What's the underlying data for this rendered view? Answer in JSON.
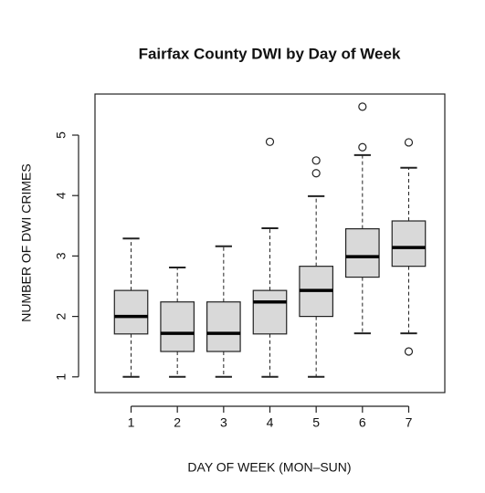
{
  "chart_data": {
    "type": "box",
    "title": "Fairfax County DWI by Day of Week",
    "x_label": "DAY OF WEEK (MON–SUN)",
    "y_label": "NUMBER OF DWI CRIMES",
    "categories": [
      "1",
      "2",
      "3",
      "4",
      "5",
      "6",
      "7"
    ],
    "boxes": [
      {
        "min": 1,
        "q1": 1.71,
        "median": 2.0,
        "q3": 2.43,
        "max": 3.29,
        "outliers": []
      },
      {
        "min": 1,
        "q1": 1.42,
        "median": 1.72,
        "q3": 2.24,
        "max": 2.81,
        "outliers": []
      },
      {
        "min": 1,
        "q1": 1.42,
        "median": 1.72,
        "q3": 2.24,
        "max": 3.16,
        "outliers": []
      },
      {
        "min": 1,
        "q1": 1.71,
        "median": 2.24,
        "q3": 2.43,
        "max": 3.46,
        "outliers": [
          4.89
        ]
      },
      {
        "min": 1,
        "q1": 2.0,
        "median": 2.43,
        "q3": 2.83,
        "max": 3.99,
        "outliers": [
          4.58,
          4.37
        ]
      },
      {
        "min": 1.72,
        "q1": 2.65,
        "median": 2.99,
        "q3": 3.45,
        "max": 4.67,
        "outliers": [
          5.47,
          4.8
        ]
      },
      {
        "min": 1.72,
        "q1": 2.83,
        "median": 3.14,
        "q3": 3.58,
        "max": 4.46,
        "outliers": [
          4.88,
          1.42
        ]
      }
    ],
    "color": "#d9d9d9",
    "ylim": [
      0.74,
      5.68
    ],
    "yticks": [
      1,
      2,
      3,
      4,
      5
    ]
  }
}
